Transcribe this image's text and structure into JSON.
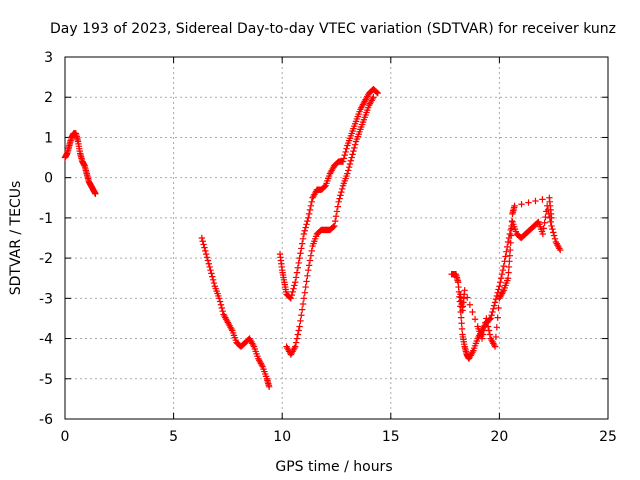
{
  "chart_data": {
    "type": "scatter",
    "title": "Day 193 of 2023, Sidereal Day-to-day VTEC variation (SDTVAR) for receiver kunz",
    "xlabel": "GPS time / hours",
    "ylabel": "SDTVAR / TECUs",
    "xlim": [
      0,
      25
    ],
    "ylim": [
      -6,
      3
    ],
    "xticks": [
      0,
      5,
      10,
      15,
      20,
      25
    ],
    "yticks": [
      -6,
      -5,
      -4,
      -3,
      -2,
      -1,
      0,
      1,
      2,
      3
    ],
    "grid": true,
    "legend": "none",
    "marker": "+",
    "color": "#ff0000",
    "series": [
      {
        "x": [
          0.0,
          0.1,
          0.2,
          0.3,
          0.4,
          0.5,
          0.6,
          0.7,
          0.8,
          0.9,
          1.0,
          1.1,
          1.2,
          1.3,
          1.4
        ],
        "y": [
          0.5,
          0.6,
          0.8,
          1.0,
          1.1,
          1.1,
          0.9,
          0.6,
          0.4,
          0.3,
          0.1,
          -0.1,
          -0.2,
          -0.3,
          -0.4
        ]
      },
      {
        "x": [
          6.3,
          6.5,
          6.7,
          6.9,
          7.1,
          7.3,
          7.5,
          7.7,
          7.9,
          8.1,
          8.3,
          8.5,
          8.7,
          8.9,
          9.1,
          9.3,
          9.4
        ],
        "y": [
          -1.5,
          -1.9,
          -2.3,
          -2.7,
          -3.0,
          -3.4,
          -3.6,
          -3.8,
          -4.1,
          -4.2,
          -4.1,
          -4.0,
          -4.2,
          -4.5,
          -4.7,
          -5.0,
          -5.2
        ]
      },
      {
        "x": [
          9.9,
          10.0,
          10.1,
          10.2,
          10.4,
          10.6,
          10.8,
          11.0,
          11.2,
          11.4,
          11.6,
          11.8,
          12.0,
          12.2,
          12.4,
          12.6,
          12.8,
          13.0,
          13.2,
          13.4,
          13.6,
          13.8,
          14.0,
          14.2,
          14.4
        ],
        "y": [
          -1.9,
          -2.3,
          -2.6,
          -2.9,
          -3.0,
          -2.6,
          -2.0,
          -1.4,
          -1.0,
          -0.5,
          -0.3,
          -0.3,
          -0.2,
          0.1,
          0.3,
          0.4,
          0.4,
          0.8,
          1.1,
          1.4,
          1.7,
          1.9,
          2.1,
          2.2,
          2.1
        ]
      },
      {
        "x": [
          10.2,
          10.4,
          10.6,
          10.8,
          11.0,
          11.2,
          11.4,
          11.6,
          11.8,
          12.0,
          12.2,
          12.4,
          12.6,
          12.8,
          13.0,
          13.2,
          13.4,
          13.6,
          13.8,
          14.0,
          14.2
        ],
        "y": [
          -4.2,
          -4.4,
          -4.2,
          -3.7,
          -3.0,
          -2.3,
          -1.7,
          -1.4,
          -1.3,
          -1.3,
          -1.3,
          -1.2,
          -0.6,
          -0.2,
          0.1,
          0.5,
          0.9,
          1.2,
          1.5,
          1.8,
          2.0
        ]
      },
      {
        "x": [
          17.8,
          18.0,
          18.1,
          18.2,
          18.3,
          18.4,
          18.5,
          18.6,
          18.8,
          19.0,
          19.2,
          19.4,
          19.6,
          19.8,
          20.0,
          20.2,
          20.4,
          20.6,
          20.8,
          21.0,
          21.2,
          21.4,
          21.6,
          21.8,
          22.0,
          22.2,
          22.4,
          22.6,
          22.8
        ],
        "y": [
          -2.4,
          -2.4,
          -2.6,
          -3.2,
          -3.9,
          -4.2,
          -4.4,
          -4.5,
          -4.3,
          -4.0,
          -3.8,
          -3.6,
          -3.5,
          -3.1,
          -2.7,
          -2.2,
          -1.6,
          -1.1,
          -1.4,
          -1.5,
          -1.4,
          -1.3,
          -1.2,
          -1.1,
          -1.4,
          -0.7,
          -1.2,
          -1.6,
          -1.8
        ]
      },
      {
        "x": [
          18.2,
          18.3,
          18.4,
          19.0,
          19.2,
          19.4,
          19.6,
          19.8,
          20.0,
          20.2,
          20.4,
          20.5,
          20.6,
          20.7,
          22.3,
          22.4
        ],
        "y": [
          -2.9,
          -3.3,
          -2.8,
          -3.7,
          -4.0,
          -3.5,
          -4.0,
          -4.2,
          -3.0,
          -2.8,
          -2.5,
          -1.8,
          -0.9,
          -0.7,
          -0.5,
          -1.0
        ]
      }
    ]
  }
}
